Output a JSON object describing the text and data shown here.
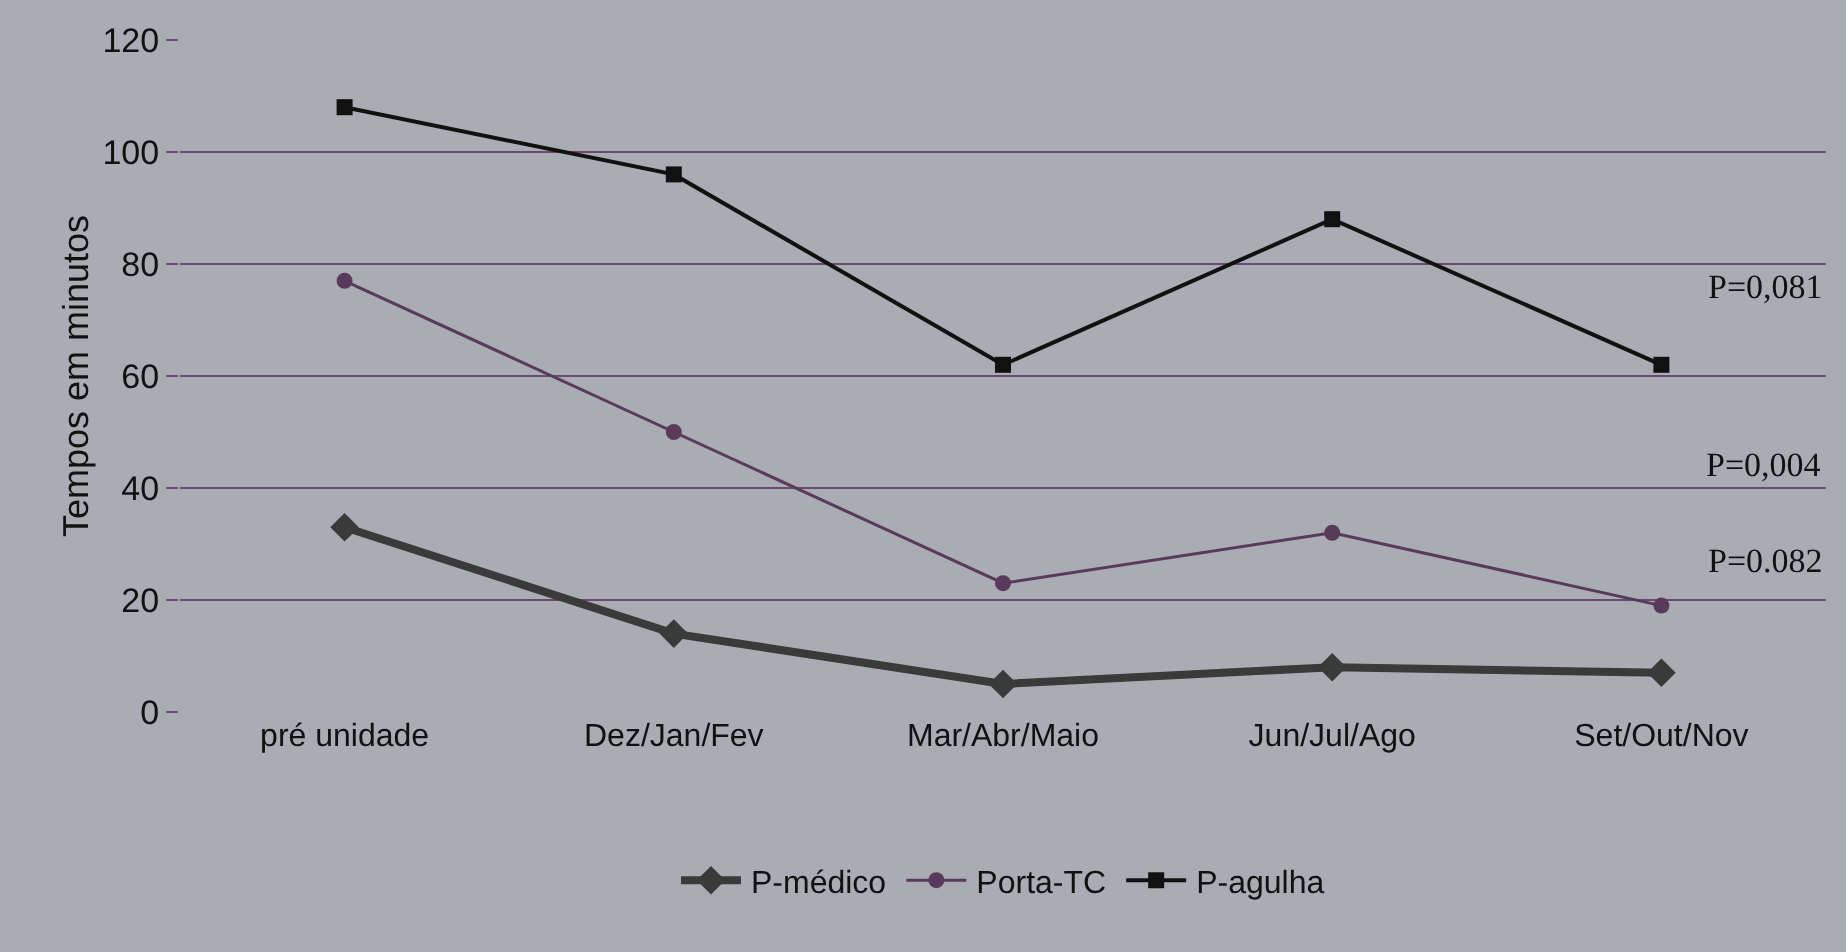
{
  "chart_data": {
    "type": "line",
    "ylabel": "Tempos em minutos",
    "categories": [
      "pré unidade",
      "Dez/Jan/Fev",
      "Mar/Abr/Maio",
      "Jun/Jul/Ago",
      "Set/Out/Nov"
    ],
    "series": [
      {
        "name": "P-médico",
        "color": "#3a3a3a",
        "values": [
          33,
          14,
          5,
          8,
          7
        ],
        "marker": "diamond"
      },
      {
        "name": "Porta-TC",
        "color": "#5a3a5a",
        "values": [
          77,
          50,
          23,
          32,
          19
        ],
        "marker": "circle"
      },
      {
        "name": "P-agulha",
        "color": "#111111",
        "values": [
          108,
          96,
          62,
          88,
          62
        ],
        "marker": "square"
      }
    ],
    "ylim": [
      0,
      120
    ],
    "yticks": [
      0,
      20,
      40,
      60,
      80,
      100,
      120
    ],
    "grid": "y",
    "legend": "bottom",
    "line_style": "solid",
    "annotations": [
      "P=0,081",
      "P=0,004",
      "P=0.082"
    ]
  }
}
